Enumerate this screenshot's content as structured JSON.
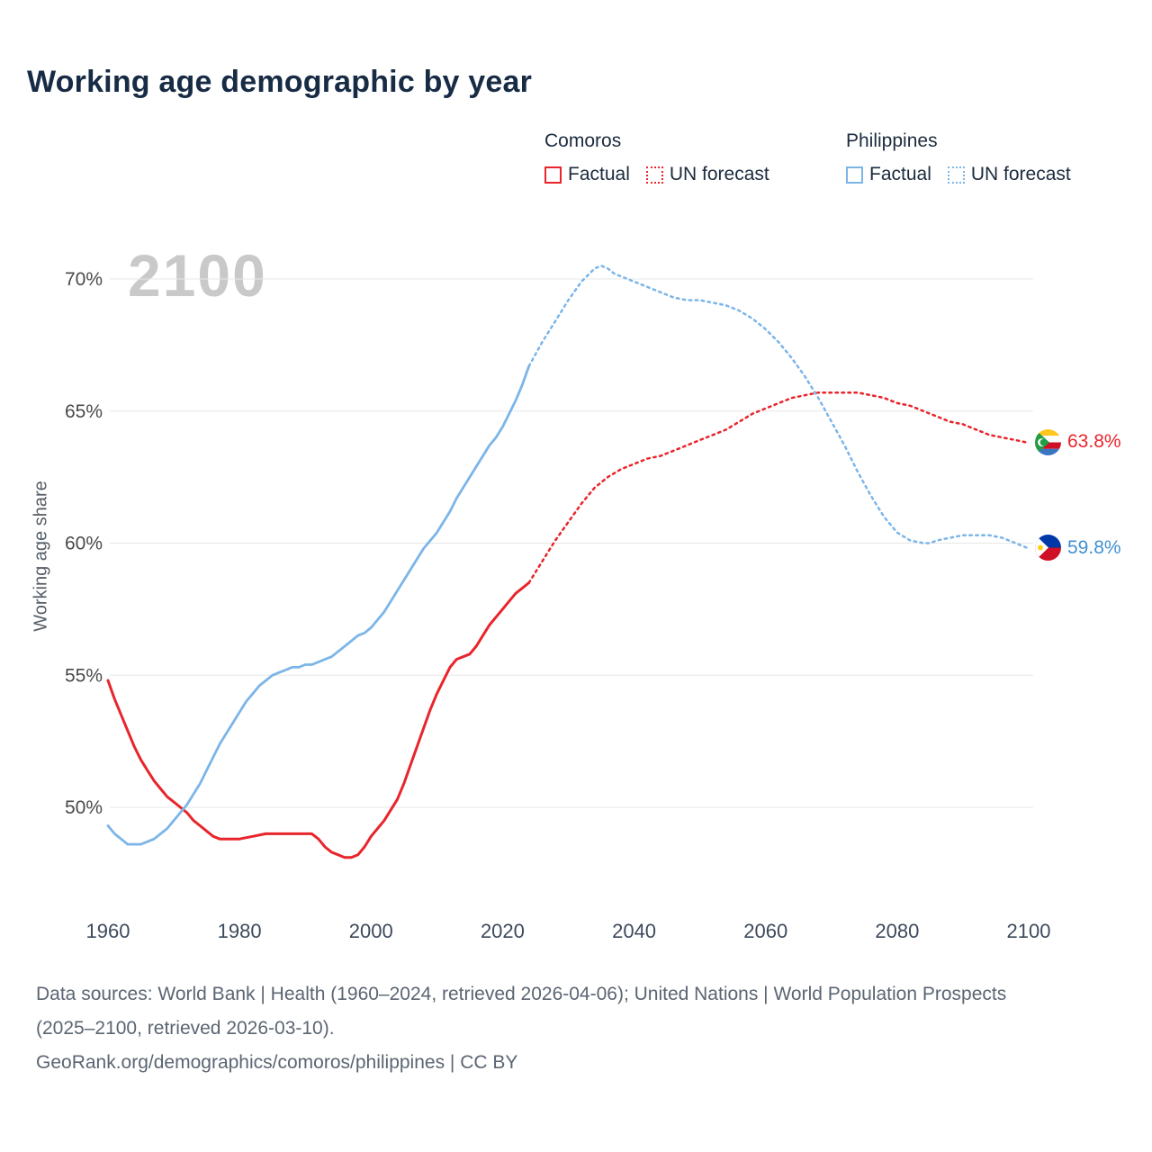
{
  "page": {
    "title": "Working age demographic by year",
    "watermark": "2100"
  },
  "legend": {
    "groups": [
      {
        "name": "Comoros",
        "color": "#e8252b",
        "items": [
          {
            "label": "Factual",
            "style": "solid"
          },
          {
            "label": "UN forecast",
            "style": "dashed"
          }
        ]
      },
      {
        "name": "Philippines",
        "color": "#7cb5e8",
        "items": [
          {
            "label": "Factual",
            "style": "solid"
          },
          {
            "label": "UN forecast",
            "style": "dashed"
          }
        ]
      }
    ]
  },
  "chart_data": {
    "type": "line",
    "title": "Working age demographic by year",
    "xlabel": "",
    "ylabel": "Working age share",
    "watermark": "2100",
    "xlim": [
      1960,
      2100
    ],
    "ylim": [
      47.5,
      71
    ],
    "grid": "horizontal",
    "legend_position": "top-right",
    "yticks": [
      {
        "value": 50,
        "label": "50%"
      },
      {
        "value": 55,
        "label": "55%"
      },
      {
        "value": 60,
        "label": "60%"
      },
      {
        "value": 65,
        "label": "65%"
      },
      {
        "value": 70,
        "label": "70%"
      }
    ],
    "xticks": [
      {
        "value": 1960,
        "label": "1960"
      },
      {
        "value": 1980,
        "label": "1980"
      },
      {
        "value": 2000,
        "label": "2000"
      },
      {
        "value": 2020,
        "label": "2020"
      },
      {
        "value": 2040,
        "label": "2040"
      },
      {
        "value": 2060,
        "label": "2060"
      },
      {
        "value": 2080,
        "label": "2080"
      },
      {
        "value": 2100,
        "label": "2100"
      }
    ],
    "series": [
      {
        "id": "comoros-factual",
        "country": "Comoros",
        "segment": "Factual",
        "color": "#e8252b",
        "style": "solid",
        "width": 3,
        "points": [
          [
            1960,
            54.8
          ],
          [
            1961,
            54.1
          ],
          [
            1962,
            53.5
          ],
          [
            1963,
            52.9
          ],
          [
            1964,
            52.3
          ],
          [
            1965,
            51.8
          ],
          [
            1966,
            51.4
          ],
          [
            1967,
            51.0
          ],
          [
            1968,
            50.7
          ],
          [
            1969,
            50.4
          ],
          [
            1970,
            50.2
          ],
          [
            1971,
            50.0
          ],
          [
            1972,
            49.8
          ],
          [
            1973,
            49.5
          ],
          [
            1974,
            49.3
          ],
          [
            1975,
            49.1
          ],
          [
            1976,
            48.9
          ],
          [
            1977,
            48.8
          ],
          [
            1978,
            48.8
          ],
          [
            1980,
            48.8
          ],
          [
            1982,
            48.9
          ],
          [
            1984,
            49.0
          ],
          [
            1986,
            49.0
          ],
          [
            1988,
            49.0
          ],
          [
            1990,
            49.0
          ],
          [
            1991,
            49.0
          ],
          [
            1992,
            48.8
          ],
          [
            1993,
            48.5
          ],
          [
            1994,
            48.3
          ],
          [
            1995,
            48.2
          ],
          [
            1996,
            48.1
          ],
          [
            1997,
            48.1
          ],
          [
            1998,
            48.2
          ],
          [
            1999,
            48.5
          ],
          [
            2000,
            48.9
          ],
          [
            2001,
            49.2
          ],
          [
            2002,
            49.5
          ],
          [
            2003,
            49.9
          ],
          [
            2004,
            50.3
          ],
          [
            2005,
            50.9
          ],
          [
            2006,
            51.6
          ],
          [
            2007,
            52.3
          ],
          [
            2008,
            53.0
          ],
          [
            2009,
            53.7
          ],
          [
            2010,
            54.3
          ],
          [
            2011,
            54.8
          ],
          [
            2012,
            55.3
          ],
          [
            2013,
            55.6
          ],
          [
            2014,
            55.7
          ],
          [
            2015,
            55.8
          ],
          [
            2016,
            56.1
          ],
          [
            2017,
            56.5
          ],
          [
            2018,
            56.9
          ],
          [
            2019,
            57.2
          ],
          [
            2020,
            57.5
          ],
          [
            2021,
            57.8
          ],
          [
            2022,
            58.1
          ],
          [
            2023,
            58.3
          ],
          [
            2024,
            58.5
          ]
        ]
      },
      {
        "id": "comoros-forecast",
        "country": "Comoros",
        "segment": "UN forecast",
        "color": "#e8252b",
        "style": "dashed",
        "width": 2.5,
        "points": [
          [
            2024,
            58.5
          ],
          [
            2026,
            59.3
          ],
          [
            2028,
            60.1
          ],
          [
            2030,
            60.8
          ],
          [
            2032,
            61.5
          ],
          [
            2034,
            62.1
          ],
          [
            2036,
            62.5
          ],
          [
            2038,
            62.8
          ],
          [
            2040,
            63.0
          ],
          [
            2042,
            63.2
          ],
          [
            2044,
            63.3
          ],
          [
            2046,
            63.5
          ],
          [
            2048,
            63.7
          ],
          [
            2050,
            63.9
          ],
          [
            2052,
            64.1
          ],
          [
            2054,
            64.3
          ],
          [
            2056,
            64.6
          ],
          [
            2058,
            64.9
          ],
          [
            2060,
            65.1
          ],
          [
            2062,
            65.3
          ],
          [
            2064,
            65.5
          ],
          [
            2066,
            65.6
          ],
          [
            2068,
            65.7
          ],
          [
            2070,
            65.7
          ],
          [
            2072,
            65.7
          ],
          [
            2074,
            65.7
          ],
          [
            2076,
            65.6
          ],
          [
            2078,
            65.5
          ],
          [
            2080,
            65.3
          ],
          [
            2082,
            65.2
          ],
          [
            2084,
            65.0
          ],
          [
            2086,
            64.8
          ],
          [
            2088,
            64.6
          ],
          [
            2090,
            64.5
          ],
          [
            2092,
            64.3
          ],
          [
            2094,
            64.1
          ],
          [
            2096,
            64.0
          ],
          [
            2098,
            63.9
          ],
          [
            2100,
            63.8
          ]
        ]
      },
      {
        "id": "philippines-factual",
        "country": "Philippines",
        "segment": "Factual",
        "color": "#7cb5e8",
        "style": "solid",
        "width": 2.8,
        "points": [
          [
            1960,
            49.3
          ],
          [
            1961,
            49.0
          ],
          [
            1962,
            48.8
          ],
          [
            1963,
            48.6
          ],
          [
            1964,
            48.6
          ],
          [
            1965,
            48.6
          ],
          [
            1966,
            48.7
          ],
          [
            1967,
            48.8
          ],
          [
            1968,
            49.0
          ],
          [
            1969,
            49.2
          ],
          [
            1970,
            49.5
          ],
          [
            1971,
            49.8
          ],
          [
            1972,
            50.1
          ],
          [
            1973,
            50.5
          ],
          [
            1974,
            50.9
          ],
          [
            1975,
            51.4
          ],
          [
            1976,
            51.9
          ],
          [
            1977,
            52.4
          ],
          [
            1978,
            52.8
          ],
          [
            1979,
            53.2
          ],
          [
            1980,
            53.6
          ],
          [
            1981,
            54.0
          ],
          [
            1982,
            54.3
          ],
          [
            1983,
            54.6
          ],
          [
            1984,
            54.8
          ],
          [
            1985,
            55.0
          ],
          [
            1986,
            55.1
          ],
          [
            1987,
            55.2
          ],
          [
            1988,
            55.3
          ],
          [
            1989,
            55.3
          ],
          [
            1990,
            55.4
          ],
          [
            1991,
            55.4
          ],
          [
            1992,
            55.5
          ],
          [
            1993,
            55.6
          ],
          [
            1994,
            55.7
          ],
          [
            1995,
            55.9
          ],
          [
            1996,
            56.1
          ],
          [
            1997,
            56.3
          ],
          [
            1998,
            56.5
          ],
          [
            1999,
            56.6
          ],
          [
            2000,
            56.8
          ],
          [
            2001,
            57.1
          ],
          [
            2002,
            57.4
          ],
          [
            2003,
            57.8
          ],
          [
            2004,
            58.2
          ],
          [
            2005,
            58.6
          ],
          [
            2006,
            59.0
          ],
          [
            2007,
            59.4
          ],
          [
            2008,
            59.8
          ],
          [
            2009,
            60.1
          ],
          [
            2010,
            60.4
          ],
          [
            2011,
            60.8
          ],
          [
            2012,
            61.2
          ],
          [
            2013,
            61.7
          ],
          [
            2014,
            62.1
          ],
          [
            2015,
            62.5
          ],
          [
            2016,
            62.9
          ],
          [
            2017,
            63.3
          ],
          [
            2018,
            63.7
          ],
          [
            2019,
            64.0
          ],
          [
            2020,
            64.4
          ],
          [
            2021,
            64.9
          ],
          [
            2022,
            65.4
          ],
          [
            2023,
            66.0
          ],
          [
            2024,
            66.7
          ]
        ]
      },
      {
        "id": "philippines-forecast",
        "country": "Philippines",
        "segment": "UN forecast",
        "color": "#7cb5e8",
        "style": "dashed",
        "width": 2.5,
        "points": [
          [
            2024,
            66.7
          ],
          [
            2026,
            67.6
          ],
          [
            2028,
            68.4
          ],
          [
            2030,
            69.2
          ],
          [
            2032,
            69.9
          ],
          [
            2034,
            70.4
          ],
          [
            2035,
            70.5
          ],
          [
            2036,
            70.4
          ],
          [
            2037,
            70.2
          ],
          [
            2038,
            70.1
          ],
          [
            2040,
            69.9
          ],
          [
            2042,
            69.7
          ],
          [
            2044,
            69.5
          ],
          [
            2046,
            69.3
          ],
          [
            2048,
            69.2
          ],
          [
            2050,
            69.2
          ],
          [
            2052,
            69.1
          ],
          [
            2054,
            69.0
          ],
          [
            2056,
            68.8
          ],
          [
            2058,
            68.5
          ],
          [
            2060,
            68.1
          ],
          [
            2062,
            67.6
          ],
          [
            2064,
            67.0
          ],
          [
            2066,
            66.3
          ],
          [
            2068,
            65.5
          ],
          [
            2070,
            64.6
          ],
          [
            2072,
            63.7
          ],
          [
            2074,
            62.7
          ],
          [
            2076,
            61.8
          ],
          [
            2078,
            61.0
          ],
          [
            2080,
            60.4
          ],
          [
            2082,
            60.1
          ],
          [
            2084,
            60.0
          ],
          [
            2085,
            60.0
          ],
          [
            2086,
            60.1
          ],
          [
            2088,
            60.2
          ],
          [
            2090,
            60.3
          ],
          [
            2092,
            60.3
          ],
          [
            2094,
            60.3
          ],
          [
            2096,
            60.2
          ],
          [
            2098,
            60.0
          ],
          [
            2100,
            59.8
          ]
        ]
      }
    ],
    "end_labels": [
      {
        "country": "Comoros",
        "label": "63.8%",
        "value": 63.8,
        "color": "#e8252b",
        "flag": "comoros"
      },
      {
        "country": "Philippines",
        "label": "59.8%",
        "value": 59.8,
        "color": "#4090d0",
        "flag": "philippines"
      }
    ]
  },
  "footer": {
    "sources": "Data sources: World Bank | Health (1960–2024, retrieved 2026-04-06); United Nations | World Population Prospects (2025–2100, retrieved 2026-03-10).",
    "attribution": "GeoRank.org/demographics/comoros/philippines | CC BY"
  }
}
